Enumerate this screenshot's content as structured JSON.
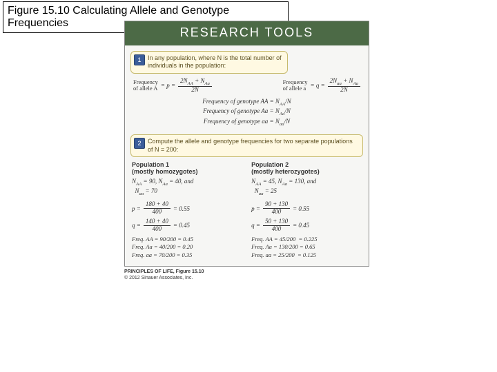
{
  "slide_title": "Figure 15.10  Calculating Allele and Genotype Frequencies",
  "header": "RESEARCH TOOLS",
  "callout1_num": "1",
  "callout1_text": "In any population, where N is the total number of individuals in the population:",
  "freqA_label1": "Frequency",
  "freqA_label2": "of allele A",
  "freqA_eq_left": "=  p  =",
  "freqA_top": "2N₍AA₎ + N₍Aa₎",
  "freqA_bot": "2N",
  "freqa_label1": "Frequency",
  "freqa_label2": "of allele a",
  "freqa_eq_left": "=  q  =",
  "freqa_top": "2N₍aa₎ + N₍Aa₎",
  "freqa_bot": "2N",
  "gt_line1": "Frequency of genotype AA = N₍AA₎/N",
  "gt_line2": "Frequency of genotype Aa = N₍Aa₎/N",
  "gt_line3": "Frequency of genotype aa = N₍aa₎/N",
  "callout2_num": "2",
  "callout2_text": "Compute the allele and genotype frequencies for two separate populations of N = 200:",
  "pop1_title": "Population 1",
  "pop1_sub": "(mostly homozygotes)",
  "pop1_counts": "N₍AA₎ = 90, N₍Aa₎ = 40, and N₍aa₎ = 70",
  "pop1_p_left": "p  =",
  "pop1_p_top": "180 + 40",
  "pop1_p_bot": "400",
  "pop1_p_val": "= 0.55",
  "pop1_q_left": "q  =",
  "pop1_q_top": "140 + 40",
  "pop1_q_bot": "400",
  "pop1_q_val": "= 0.45",
  "pop1_freqs_l1": "Freq. AA = 90/200 = 0.45",
  "pop1_freqs_l2": "Freq. Aa = 40/200 = 0.20",
  "pop1_freqs_l3": "Freq. aa = 70/200 = 0.35",
  "pop2_title": "Population 2",
  "pop2_sub": "(mostly heterozygotes)",
  "pop2_counts": "N₍AA₎ = 45, N₍Aa₎ = 130, and N₍aa₎ = 25",
  "pop2_p_left": "p  =",
  "pop2_p_top": "90 + 130",
  "pop2_p_bot": "400",
  "pop2_p_val": "= 0.55",
  "pop2_q_left": "q  =",
  "pop2_q_top": "50 + 130",
  "pop2_q_bot": "400",
  "pop2_q_val": "= 0.45",
  "pop2_freqs_l1": "Freq. AA = 45/200  = 0.225",
  "pop2_freqs_l2": "Freq. Aa = 130/200 = 0.65",
  "pop2_freqs_l3": "Freq. aa = 25/200  = 0.125",
  "credit1": "PRINCIPLES OF LIFE, Figure 15.10",
  "credit2": "© 2012 Sinauer Associates, Inc."
}
